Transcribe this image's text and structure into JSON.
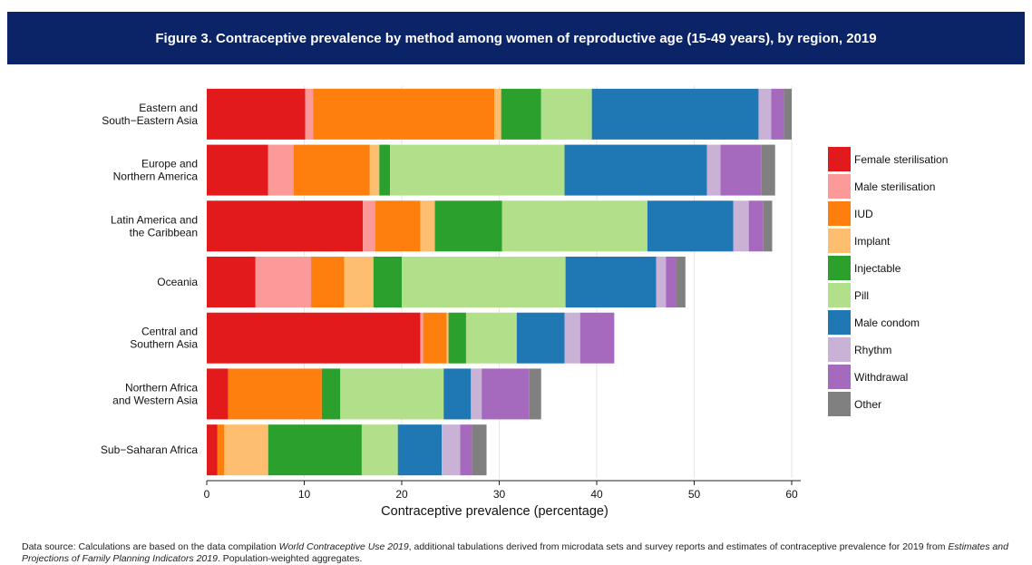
{
  "header": {
    "title": "Figure 3. Contraceptive prevalence by method among women of reproductive age (15-49 years), by region, 2019"
  },
  "source": {
    "prefix": "Data source: Calculations are based on the data compilation ",
    "italic1": "World Contraceptive Use 2019",
    "middle": ", additional tabulations derived from microdata sets and survey reports and estimates of contraceptive prevalence for 2019 from ",
    "italic2": "Estimates and Projections of Family Planning Indicators 2019",
    "suffix": ". Population-weighted aggregates."
  },
  "chart_data": {
    "type": "bar",
    "orientation": "horizontal",
    "stacked": true,
    "xlabel": "Contraceptive prevalence (percentage)",
    "xlim": [
      0,
      60
    ],
    "xticks": [
      0,
      10,
      20,
      30,
      40,
      50,
      60
    ],
    "grid": true,
    "legend_position": "right",
    "categories": [
      [
        "Eastern and",
        "South−Eastern Asia"
      ],
      [
        "Europe and",
        "Northern America"
      ],
      [
        "Latin America and",
        "the Caribbean"
      ],
      [
        "Oceania"
      ],
      [
        "Central and",
        "Southern Asia"
      ],
      [
        "Northern Africa",
        "and Western Asia"
      ],
      [
        "Sub−Saharan Africa"
      ]
    ],
    "series": [
      {
        "name": "Female sterilisation",
        "color": "#e31a1c",
        "values": [
          10.1,
          6.3,
          16.0,
          5.0,
          21.9,
          2.2,
          1.1
        ]
      },
      {
        "name": "Male sterilisation",
        "color": "#fb9a99",
        "values": [
          0.8,
          2.6,
          1.3,
          5.7,
          0.3,
          0.0,
          0.0
        ]
      },
      {
        "name": "IUD",
        "color": "#ff7f0e",
        "values": [
          18.6,
          7.8,
          4.6,
          3.4,
          2.4,
          9.6,
          0.7
        ]
      },
      {
        "name": "Implant",
        "color": "#fdbf6f",
        "values": [
          0.7,
          1.0,
          1.5,
          3.0,
          0.2,
          0.0,
          4.5
        ]
      },
      {
        "name": "Injectable",
        "color": "#2ca02c",
        "values": [
          4.1,
          1.1,
          6.9,
          2.9,
          1.8,
          1.9,
          9.6
        ]
      },
      {
        "name": "Pill",
        "color": "#b2df8a",
        "values": [
          5.2,
          17.9,
          14.9,
          16.8,
          5.2,
          10.6,
          3.7
        ]
      },
      {
        "name": "Male condom",
        "color": "#1f78b4",
        "values": [
          17.1,
          14.6,
          8.8,
          9.3,
          4.9,
          2.8,
          4.5
        ]
      },
      {
        "name": "Rhythm",
        "color": "#cab2d6",
        "values": [
          1.3,
          1.4,
          1.6,
          1.0,
          1.6,
          1.1,
          1.9
        ]
      },
      {
        "name": "Withdrawal",
        "color": "#a569bd",
        "values": [
          1.3,
          4.2,
          1.5,
          1.0,
          3.5,
          4.9,
          1.2
        ]
      },
      {
        "name": "Other",
        "color": "#808080",
        "values": [
          0.8,
          1.4,
          0.9,
          1.0,
          0.0,
          1.2,
          1.5
        ]
      }
    ]
  }
}
